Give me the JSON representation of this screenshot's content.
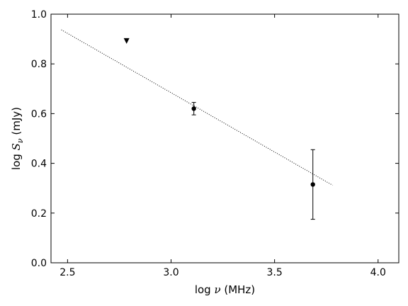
{
  "chart_data": {
    "type": "scatter",
    "title": "",
    "xlabel": "log ν (MHz)",
    "ylabel": "log S_ν (mJy)",
    "xlabel_parts": {
      "prefix": "log ",
      "symbol": "ν",
      "suffix": " (MHz)"
    },
    "ylabel_parts": {
      "prefix": "log ",
      "symbol": "S",
      "subscript": "ν",
      "suffix": " (mJy)"
    },
    "xlim": [
      2.42,
      4.1
    ],
    "ylim": [
      0.0,
      1.0
    ],
    "xticks": [
      2.5,
      3.0,
      3.5,
      4.0
    ],
    "xtick_labels": [
      "2.5",
      "3.0",
      "3.5",
      "4.0"
    ],
    "yticks": [
      0.0,
      0.2,
      0.4,
      0.6,
      0.8,
      1.0
    ],
    "ytick_labels": [
      "0.0",
      "0.2",
      "0.4",
      "0.6",
      "0.8",
      "1.0"
    ],
    "grid": false,
    "series": [
      {
        "marker": "circle",
        "color": "#000000",
        "points": [
          {
            "x": 3.11,
            "y": 0.62,
            "yerr": 0.025
          },
          {
            "x": 3.685,
            "y": 0.315,
            "yerr": 0.14
          }
        ]
      },
      {
        "marker": "triangle-down",
        "color": "#000000",
        "points": [
          {
            "x": 2.785,
            "y": 0.892
          }
        ]
      }
    ],
    "fit_line": {
      "style": "dotted",
      "color": "#000000",
      "x": [
        2.47,
        3.78
      ],
      "y": [
        0.937,
        0.312
      ]
    }
  }
}
